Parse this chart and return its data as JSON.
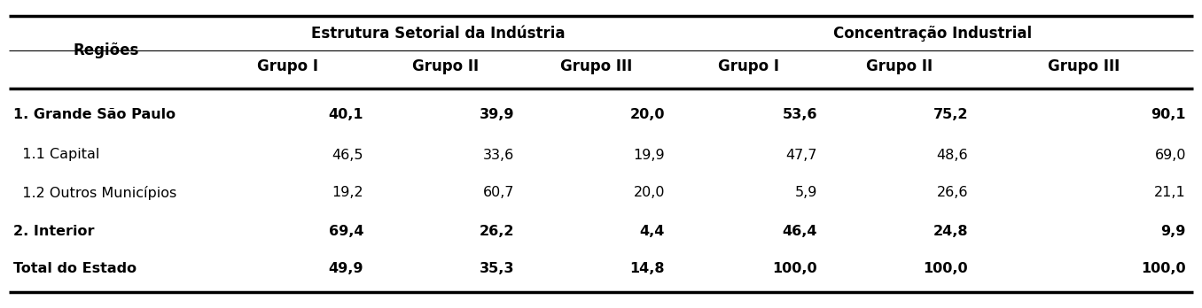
{
  "col_header_row1_span1": "Estrutura Setorial da Indústria",
  "col_header_row1_span2": "Concentração Industrial",
  "col_header_row2": [
    "Regiões",
    "Grupo I",
    "Grupo II",
    "Grupo III",
    "Grupo I",
    "Grupo II",
    "Grupo III"
  ],
  "rows": [
    [
      "1. Grande São Paulo",
      "40,1",
      "39,9",
      "20,0",
      "53,6",
      "75,2",
      "90,1"
    ],
    [
      "  1.1 Capital",
      "46,5",
      "33,6",
      "19,9",
      "47,7",
      "48,6",
      "69,0"
    ],
    [
      "  1.2 Outros Municípios",
      "19,2",
      "60,7",
      "20,0",
      "5,9",
      "26,6",
      "21,1"
    ],
    [
      "2. Interior",
      "69,4",
      "26,2",
      "4,4",
      "46,4",
      "24,8",
      "9,9"
    ],
    [
      "Total do Estado",
      "49,9",
      "35,3",
      "14,8",
      "100,0",
      "100,0",
      "100,0"
    ]
  ],
  "bold_rows": [
    0,
    3,
    4
  ],
  "background_color": "#ffffff",
  "text_color": "#000000",
  "line_color": "#000000"
}
